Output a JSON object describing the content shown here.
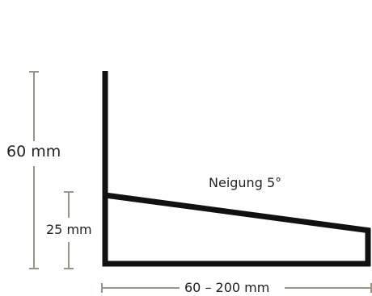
{
  "labels": {
    "height_total": "60 mm",
    "height_front": "25 mm",
    "slope": "Neigung 5°",
    "width_range": "60 – 200 mm"
  },
  "colors": {
    "profile": "#111111",
    "dimension_lines": "#9a9487",
    "text": "#222222"
  }
}
